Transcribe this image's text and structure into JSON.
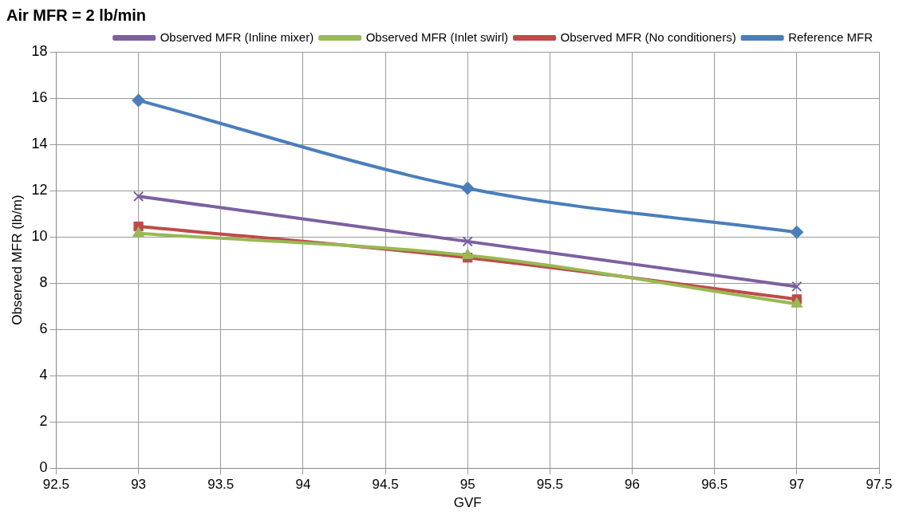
{
  "chart_data": {
    "type": "line",
    "title": "Air MFR = 2 lb/min",
    "xlabel": "GVF",
    "ylabel": "Observed MFR (lb/m)",
    "x": [
      93,
      95,
      97
    ],
    "series": [
      {
        "name": "Reference MFR",
        "color": "#4a7ebb",
        "values": [
          15.9,
          12.1,
          10.2
        ],
        "marker": "diamond"
      },
      {
        "name": "Observed MFR (No conditioners)",
        "color": "#be4b48",
        "values": [
          10.45,
          9.1,
          7.3
        ],
        "marker": "square"
      },
      {
        "name": "Observed MFR (Inlet swirl)",
        "color": "#98b954",
        "values": [
          10.15,
          9.2,
          7.1
        ],
        "marker": "triangle"
      },
      {
        "name": "Observed MFR (Inline mixer)",
        "color": "#7d60a0",
        "values": [
          11.75,
          9.8,
          7.85
        ],
        "marker": "cross"
      }
    ],
    "xlim": [
      92.5,
      97.5
    ],
    "xticks": [
      92.5,
      93,
      93.5,
      94,
      94.5,
      95,
      95.5,
      96,
      96.5,
      97,
      97.5
    ],
    "ylim": [
      0,
      18
    ],
    "yticks": [
      0,
      2,
      4,
      6,
      8,
      10,
      12,
      14,
      16,
      18
    ],
    "grid": true,
    "legend": "top right",
    "line_style": "solid"
  }
}
